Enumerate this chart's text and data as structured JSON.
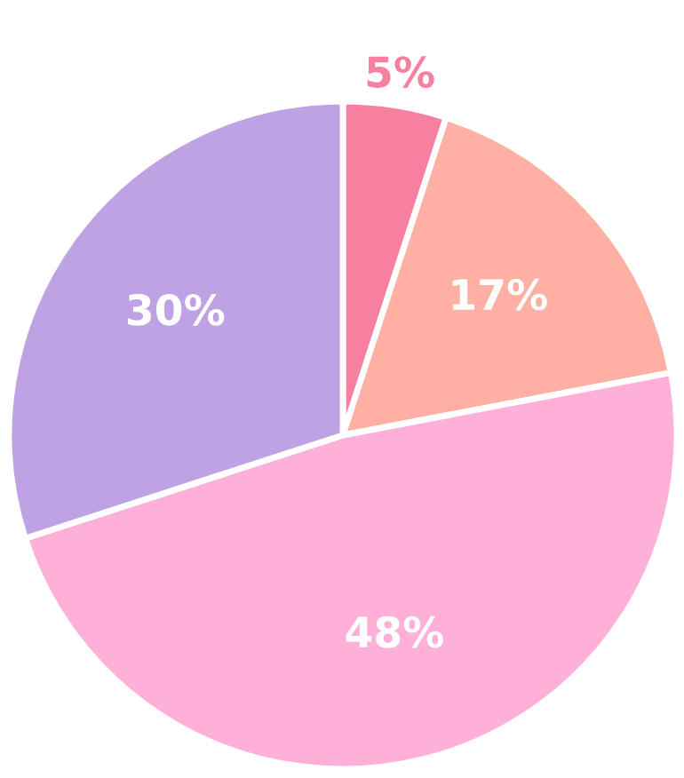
{
  "chart_data": {
    "type": "pie",
    "categories": [
      null,
      null,
      null,
      null
    ],
    "values": [
      5,
      17,
      48,
      30
    ],
    "value_labels": [
      "5%",
      "17%",
      "48%",
      "30%"
    ],
    "colors": [
      "#f77fa0",
      "#ffb0a5",
      "#ffb0d8",
      "#bfa2e4"
    ]
  }
}
